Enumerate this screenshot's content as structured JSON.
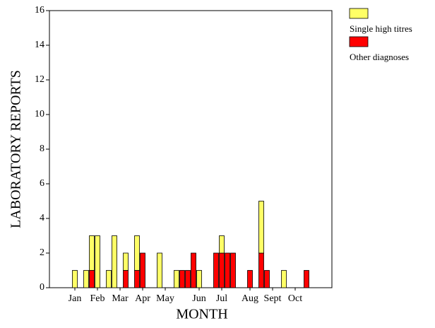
{
  "chart_data": {
    "type": "stacked-bar",
    "x_label": "MONTH",
    "y_label": "LABORATORY REPORTS",
    "categories": [
      null,
      null,
      null,
      null,
      "Jan",
      null,
      null,
      null,
      "Feb",
      null,
      null,
      null,
      "Mar",
      null,
      null,
      null,
      "Apr",
      null,
      null,
      null,
      "May",
      null,
      null,
      null,
      null,
      null,
      "Jun",
      null,
      null,
      null,
      "Jul",
      null,
      null,
      null,
      null,
      "Aug",
      null,
      null,
      null,
      "Sept",
      null,
      null,
      null,
      "Oct",
      null,
      null,
      null,
      null,
      null,
      null
    ],
    "series": [
      {
        "name": "Other diagnoses",
        "color": "#ff0000",
        "values": [
          0,
          0,
          0,
          0,
          0,
          0,
          0,
          1,
          0,
          0,
          0,
          0,
          0,
          1,
          0,
          1,
          2,
          0,
          0,
          0,
          0,
          0,
          0,
          1,
          1,
          2,
          0,
          0,
          0,
          2,
          2,
          2,
          2,
          0,
          0,
          1,
          0,
          2,
          1,
          0,
          0,
          0,
          0,
          0,
          0,
          1,
          0,
          0,
          0,
          0
        ]
      },
      {
        "name": "Single high titres",
        "color": "#ffff66",
        "values": [
          0,
          0,
          0,
          0,
          1,
          0,
          1,
          2,
          3,
          0,
          1,
          3,
          0,
          1,
          0,
          2,
          0,
          0,
          0,
          2,
          0,
          0,
          1,
          0,
          0,
          0,
          1,
          0,
          0,
          0,
          1,
          0,
          0,
          0,
          0,
          0,
          0,
          3,
          0,
          0,
          0,
          1,
          0,
          0,
          0,
          0,
          0,
          0,
          0,
          0
        ]
      }
    ],
    "ylim": [
      0,
      16
    ],
    "yticks": [
      0,
      2,
      4,
      6,
      8,
      10,
      12,
      14,
      16
    ],
    "legend": "top-right"
  }
}
